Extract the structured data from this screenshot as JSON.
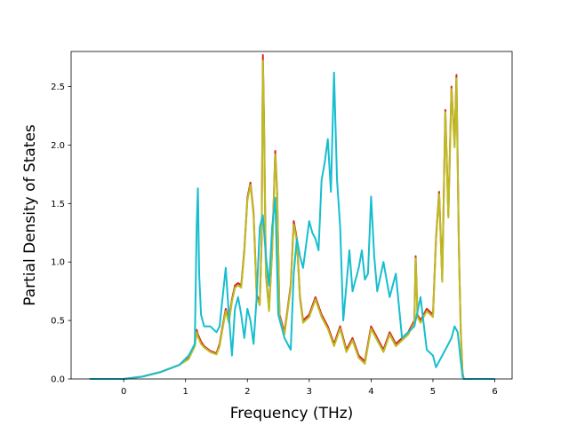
{
  "chart_data": {
    "type": "line",
    "title": "",
    "xlabel": "Frequency (THz)",
    "ylabel": "Partial Density of States",
    "xlim": [
      -0.85,
      6.28
    ],
    "ylim": [
      0.0,
      2.8
    ],
    "xticks": [
      0,
      1,
      2,
      3,
      4,
      5,
      6
    ],
    "xtick_labels": [
      "0",
      "1",
      "2",
      "3",
      "4",
      "5",
      "6"
    ],
    "yticks": [
      0.0,
      0.5,
      1.0,
      1.5,
      2.0,
      2.5
    ],
    "ytick_labels": [
      "0.0",
      "0.5",
      "1.0",
      "1.5",
      "2.0",
      "2.5"
    ],
    "grid": false,
    "legend": "none",
    "series": [
      {
        "color": "#d62728",
        "points": [
          [
            -0.55,
            0.0
          ],
          [
            0.0,
            0.0
          ],
          [
            0.3,
            0.02
          ],
          [
            0.6,
            0.06
          ],
          [
            0.9,
            0.12
          ],
          [
            1.05,
            0.18
          ],
          [
            1.15,
            0.3
          ],
          [
            1.18,
            0.42
          ],
          [
            1.2,
            0.38
          ],
          [
            1.25,
            0.32
          ],
          [
            1.3,
            0.28
          ],
          [
            1.4,
            0.24
          ],
          [
            1.5,
            0.22
          ],
          [
            1.55,
            0.3
          ],
          [
            1.6,
            0.45
          ],
          [
            1.65,
            0.6
          ],
          [
            1.7,
            0.5
          ],
          [
            1.75,
            0.68
          ],
          [
            1.8,
            0.8
          ],
          [
            1.85,
            0.82
          ],
          [
            1.9,
            0.8
          ],
          [
            1.95,
            1.1
          ],
          [
            2.0,
            1.55
          ],
          [
            2.05,
            1.68
          ],
          [
            2.1,
            1.42
          ],
          [
            2.15,
            0.72
          ],
          [
            2.2,
            0.65
          ],
          [
            2.23,
            1.2
          ],
          [
            2.25,
            2.77
          ],
          [
            2.27,
            2.2
          ],
          [
            2.3,
            0.9
          ],
          [
            2.35,
            0.6
          ],
          [
            2.4,
            1.1
          ],
          [
            2.45,
            1.95
          ],
          [
            2.48,
            1.6
          ],
          [
            2.52,
            0.55
          ],
          [
            2.6,
            0.4
          ],
          [
            2.7,
            0.8
          ],
          [
            2.75,
            1.35
          ],
          [
            2.8,
            1.2
          ],
          [
            2.85,
            0.7
          ],
          [
            2.9,
            0.5
          ],
          [
            3.0,
            0.55
          ],
          [
            3.1,
            0.7
          ],
          [
            3.2,
            0.55
          ],
          [
            3.3,
            0.45
          ],
          [
            3.4,
            0.3
          ],
          [
            3.5,
            0.45
          ],
          [
            3.6,
            0.25
          ],
          [
            3.7,
            0.35
          ],
          [
            3.8,
            0.2
          ],
          [
            3.9,
            0.15
          ],
          [
            4.0,
            0.45
          ],
          [
            4.1,
            0.35
          ],
          [
            4.2,
            0.25
          ],
          [
            4.3,
            0.4
          ],
          [
            4.4,
            0.3
          ],
          [
            4.5,
            0.35
          ],
          [
            4.6,
            0.4
          ],
          [
            4.7,
            0.5
          ],
          [
            4.72,
            1.05
          ],
          [
            4.75,
            0.55
          ],
          [
            4.8,
            0.5
          ],
          [
            4.9,
            0.6
          ],
          [
            5.0,
            0.55
          ],
          [
            5.05,
            1.2
          ],
          [
            5.1,
            1.6
          ],
          [
            5.15,
            0.85
          ],
          [
            5.2,
            2.3
          ],
          [
            5.25,
            1.4
          ],
          [
            5.3,
            2.5
          ],
          [
            5.35,
            2.0
          ],
          [
            5.38,
            2.6
          ],
          [
            5.42,
            1.1
          ],
          [
            5.45,
            0.4
          ],
          [
            5.48,
            0.05
          ],
          [
            5.5,
            0.0
          ],
          [
            6.0,
            0.0
          ]
        ]
      },
      {
        "color": "#bcbd22",
        "points": [
          [
            -0.55,
            0.0
          ],
          [
            0.0,
            0.0
          ],
          [
            0.3,
            0.02
          ],
          [
            0.6,
            0.06
          ],
          [
            0.9,
            0.12
          ],
          [
            1.05,
            0.17
          ],
          [
            1.15,
            0.28
          ],
          [
            1.18,
            0.4
          ],
          [
            1.2,
            0.36
          ],
          [
            1.25,
            0.3
          ],
          [
            1.3,
            0.27
          ],
          [
            1.4,
            0.23
          ],
          [
            1.5,
            0.21
          ],
          [
            1.55,
            0.28
          ],
          [
            1.6,
            0.43
          ],
          [
            1.65,
            0.58
          ],
          [
            1.7,
            0.48
          ],
          [
            1.75,
            0.66
          ],
          [
            1.8,
            0.78
          ],
          [
            1.85,
            0.8
          ],
          [
            1.9,
            0.78
          ],
          [
            1.95,
            1.08
          ],
          [
            2.0,
            1.53
          ],
          [
            2.05,
            1.66
          ],
          [
            2.1,
            1.4
          ],
          [
            2.15,
            0.7
          ],
          [
            2.2,
            0.63
          ],
          [
            2.23,
            1.18
          ],
          [
            2.25,
            2.72
          ],
          [
            2.27,
            2.15
          ],
          [
            2.3,
            0.88
          ],
          [
            2.35,
            0.58
          ],
          [
            2.4,
            1.08
          ],
          [
            2.45,
            1.92
          ],
          [
            2.48,
            1.58
          ],
          [
            2.52,
            0.53
          ],
          [
            2.6,
            0.38
          ],
          [
            2.7,
            0.78
          ],
          [
            2.75,
            1.32
          ],
          [
            2.8,
            1.18
          ],
          [
            2.85,
            0.68
          ],
          [
            2.9,
            0.48
          ],
          [
            3.0,
            0.53
          ],
          [
            3.1,
            0.68
          ],
          [
            3.2,
            0.53
          ],
          [
            3.3,
            0.43
          ],
          [
            3.4,
            0.28
          ],
          [
            3.5,
            0.43
          ],
          [
            3.6,
            0.23
          ],
          [
            3.7,
            0.33
          ],
          [
            3.8,
            0.18
          ],
          [
            3.9,
            0.13
          ],
          [
            4.0,
            0.43
          ],
          [
            4.1,
            0.33
          ],
          [
            4.2,
            0.23
          ],
          [
            4.3,
            0.38
          ],
          [
            4.4,
            0.28
          ],
          [
            4.5,
            0.33
          ],
          [
            4.6,
            0.38
          ],
          [
            4.7,
            0.48
          ],
          [
            4.72,
            1.03
          ],
          [
            4.75,
            0.53
          ],
          [
            4.8,
            0.48
          ],
          [
            4.9,
            0.58
          ],
          [
            5.0,
            0.53
          ],
          [
            5.05,
            1.18
          ],
          [
            5.1,
            1.58
          ],
          [
            5.15,
            0.83
          ],
          [
            5.2,
            2.28
          ],
          [
            5.25,
            1.38
          ],
          [
            5.3,
            2.48
          ],
          [
            5.35,
            1.98
          ],
          [
            5.38,
            2.57
          ],
          [
            5.42,
            1.08
          ],
          [
            5.45,
            0.38
          ],
          [
            5.48,
            0.04
          ],
          [
            5.5,
            0.0
          ],
          [
            6.0,
            0.0
          ]
        ]
      },
      {
        "color": "#17becf",
        "points": [
          [
            -0.55,
            0.0
          ],
          [
            0.0,
            0.0
          ],
          [
            0.3,
            0.02
          ],
          [
            0.6,
            0.06
          ],
          [
            0.9,
            0.12
          ],
          [
            1.05,
            0.2
          ],
          [
            1.1,
            0.25
          ],
          [
            1.15,
            0.3
          ],
          [
            1.18,
            1.3
          ],
          [
            1.2,
            1.63
          ],
          [
            1.22,
            0.9
          ],
          [
            1.25,
            0.55
          ],
          [
            1.3,
            0.45
          ],
          [
            1.4,
            0.45
          ],
          [
            1.5,
            0.4
          ],
          [
            1.55,
            0.45
          ],
          [
            1.6,
            0.7
          ],
          [
            1.65,
            0.95
          ],
          [
            1.7,
            0.55
          ],
          [
            1.75,
            0.2
          ],
          [
            1.8,
            0.6
          ],
          [
            1.85,
            0.7
          ],
          [
            1.9,
            0.55
          ],
          [
            1.95,
            0.35
          ],
          [
            2.0,
            0.6
          ],
          [
            2.05,
            0.5
          ],
          [
            2.1,
            0.3
          ],
          [
            2.15,
            0.7
          ],
          [
            2.2,
            1.3
          ],
          [
            2.25,
            1.4
          ],
          [
            2.3,
            1.05
          ],
          [
            2.35,
            0.8
          ],
          [
            2.4,
            1.3
          ],
          [
            2.45,
            1.55
          ],
          [
            2.5,
            0.55
          ],
          [
            2.6,
            0.35
          ],
          [
            2.7,
            0.25
          ],
          [
            2.75,
            0.9
          ],
          [
            2.8,
            1.2
          ],
          [
            2.85,
            1.05
          ],
          [
            2.9,
            0.95
          ],
          [
            3.0,
            1.35
          ],
          [
            3.05,
            1.25
          ],
          [
            3.1,
            1.2
          ],
          [
            3.15,
            1.1
          ],
          [
            3.2,
            1.7
          ],
          [
            3.25,
            1.85
          ],
          [
            3.3,
            2.05
          ],
          [
            3.35,
            1.6
          ],
          [
            3.4,
            2.62
          ],
          [
            3.45,
            1.7
          ],
          [
            3.5,
            1.3
          ],
          [
            3.55,
            0.5
          ],
          [
            3.6,
            0.8
          ],
          [
            3.65,
            1.1
          ],
          [
            3.7,
            0.75
          ],
          [
            3.8,
            0.95
          ],
          [
            3.85,
            1.1
          ],
          [
            3.9,
            0.85
          ],
          [
            3.95,
            0.9
          ],
          [
            4.0,
            1.56
          ],
          [
            4.05,
            1.05
          ],
          [
            4.1,
            0.75
          ],
          [
            4.2,
            1.0
          ],
          [
            4.3,
            0.7
          ],
          [
            4.4,
            0.9
          ],
          [
            4.5,
            0.35
          ],
          [
            4.6,
            0.4
          ],
          [
            4.7,
            0.45
          ],
          [
            4.8,
            0.7
          ],
          [
            4.9,
            0.25
          ],
          [
            5.0,
            0.2
          ],
          [
            5.05,
            0.1
          ],
          [
            5.1,
            0.15
          ],
          [
            5.2,
            0.25
          ],
          [
            5.3,
            0.35
          ],
          [
            5.35,
            0.45
          ],
          [
            5.4,
            0.4
          ],
          [
            5.45,
            0.15
          ],
          [
            5.48,
            0.02
          ],
          [
            5.5,
            0.0
          ],
          [
            6.0,
            0.0
          ]
        ]
      }
    ]
  }
}
